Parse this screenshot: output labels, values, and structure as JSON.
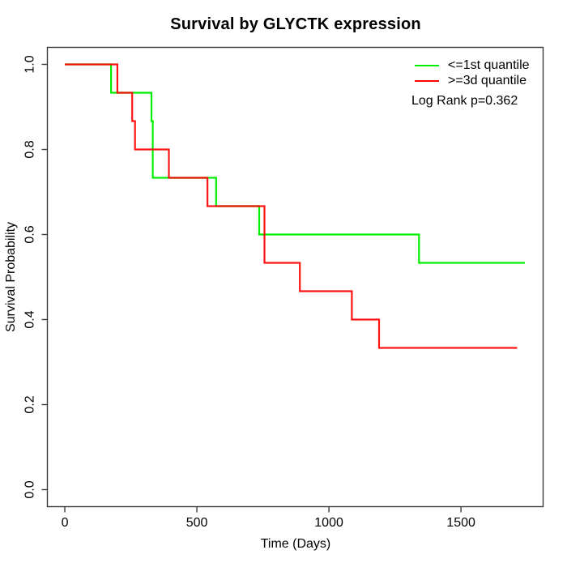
{
  "title": "Survival by GLYCTK expression",
  "legend": {
    "items": [
      {
        "label": "<=1st quantile",
        "color": "#00ee00"
      },
      {
        "label": ">=3d quantile",
        "color": "#ff0000"
      }
    ],
    "note": "Log Rank p=0.362"
  },
  "axes": {
    "x_label": "Time (Days)",
    "y_label": "Survival Probability"
  },
  "colors": {
    "first_quantile": "#00ee00",
    "third_quantile": "#ff0000",
    "axis": "#3a3a3a",
    "text": "#000000",
    "background": "#ffffff"
  },
  "chart_data": {
    "type": "line",
    "subtype": "kaplan-meier-step",
    "title": "Survival by GLYCTK expression",
    "xlabel": "Time (Days)",
    "ylabel": "Survival Probability",
    "xlim": [
      -66,
      1811
    ],
    "ylim": [
      -0.04,
      1.04
    ],
    "x_ticks": [
      0,
      500,
      1000,
      1500
    ],
    "x_tick_labels": [
      "0",
      "500",
      "1000",
      "1500"
    ],
    "y_ticks": [
      0,
      0.2,
      0.4,
      0.6,
      0.8,
      1.0
    ],
    "y_tick_labels": [
      "0.0",
      "0.2",
      "0.4",
      "0.6",
      "0.8",
      "1.0"
    ],
    "grid": false,
    "legend_position": "top-right",
    "log_rank_p": 0.362,
    "series": [
      {
        "name": "<=1st quantile",
        "color": "#00ee00",
        "points": [
          [
            0,
            1.0
          ],
          [
            175,
            1.0
          ],
          [
            175,
            0.9333
          ],
          [
            328,
            0.9333
          ],
          [
            328,
            0.8667
          ],
          [
            333,
            0.8667
          ],
          [
            333,
            0.7333
          ],
          [
            573,
            0.7333
          ],
          [
            573,
            0.6667
          ],
          [
            736,
            0.6667
          ],
          [
            736,
            0.6
          ],
          [
            1341,
            0.6
          ],
          [
            1341,
            0.5333
          ],
          [
            1742,
            0.5333
          ]
        ]
      },
      {
        "name": ">=3d quantile",
        "color": "#ff0000",
        "points": [
          [
            0,
            1.0
          ],
          [
            199,
            1.0
          ],
          [
            199,
            0.9333
          ],
          [
            255,
            0.9333
          ],
          [
            255,
            0.8667
          ],
          [
            266,
            0.8667
          ],
          [
            266,
            0.8
          ],
          [
            394,
            0.8
          ],
          [
            394,
            0.7333
          ],
          [
            540,
            0.7333
          ],
          [
            540,
            0.6667
          ],
          [
            756,
            0.6667
          ],
          [
            756,
            0.5333
          ],
          [
            890,
            0.5333
          ],
          [
            890,
            0.4667
          ],
          [
            1087,
            0.4667
          ],
          [
            1087,
            0.4
          ],
          [
            1190,
            0.4
          ],
          [
            1190,
            0.3333
          ],
          [
            1713,
            0.3333
          ]
        ]
      }
    ]
  }
}
